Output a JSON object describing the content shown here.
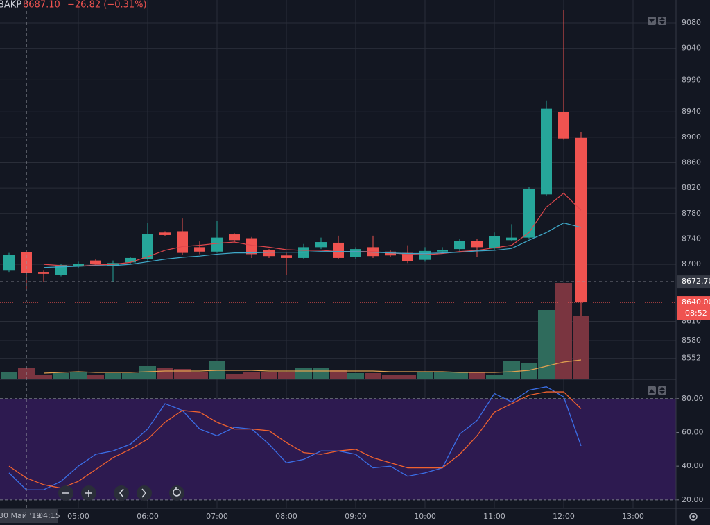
{
  "chart_data": [
    {
      "type": "candlestick",
      "title": "BAKP",
      "price": "8687.10",
      "change": "−26.82 (−0.31%)",
      "up_color": "#26a69a",
      "down_color": "#ef5350",
      "open": [
        8690,
        8719,
        8688,
        8683,
        8697,
        8706,
        8698,
        8703,
        8708,
        8750,
        8752,
        8727,
        8720,
        8747,
        8741,
        8722,
        8714,
        8710,
        8727,
        8734,
        8712,
        8727,
        8720,
        8718,
        8707,
        8720,
        8724,
        8737,
        8725,
        8738,
        8742,
        8810,
        8940,
        8899
      ],
      "high": [
        8718,
        8722,
        8690,
        8701,
        8704,
        8708,
        8706,
        8712,
        8765,
        8752,
        8772,
        8736,
        8768,
        8749,
        8743,
        8724,
        8718,
        8732,
        8742,
        8745,
        8727,
        8745,
        8722,
        8730,
        8727,
        8727,
        8740,
        8740,
        8750,
        8763,
        8822,
        8958,
        9100,
        8908
      ],
      "low": [
        8688,
        8660,
        8672,
        8681,
        8694,
        8697,
        8673,
        8700,
        8706,
        8744,
        8715,
        8716,
        8718,
        8735,
        8710,
        8710,
        8683,
        8708,
        8724,
        8708,
        8708,
        8710,
        8712,
        8702,
        8704,
        8717,
        8720,
        8712,
        8722,
        8736,
        8740,
        8808,
        8896,
        8588
      ],
      "close": [
        8715,
        8687,
        8685,
        8699,
        8701,
        8700,
        8702,
        8710,
        8748,
        8746,
        8718,
        8720,
        8742,
        8738,
        8716,
        8713,
        8710,
        8727,
        8735,
        8710,
        8724,
        8713,
        8714,
        8705,
        8721,
        8723,
        8737,
        8727,
        8744,
        8742,
        8818,
        8945,
        8898,
        8640
      ],
      "lines": [
        {
          "color": "#e0474c",
          "values": [
            null,
            null,
            8700,
            8698,
            8697,
            8699,
            8700,
            8703,
            8712,
            8722,
            8728,
            8730,
            8733,
            8735,
            8730,
            8727,
            8723,
            8722,
            8722,
            8720,
            8720,
            8720,
            8718,
            8716,
            8715,
            8717,
            8720,
            8722,
            8726,
            8730,
            8750,
            8790,
            8812,
            8785
          ]
        },
        {
          "color": "#3fa9c9",
          "values": [
            null,
            null,
            8695,
            8696,
            8697,
            8698,
            8698,
            8700,
            8704,
            8708,
            8711,
            8713,
            8716,
            8718,
            8718,
            8719,
            8719,
            8719,
            8720,
            8720,
            8720,
            8719,
            8718,
            8717,
            8717,
            8718,
            8719,
            8721,
            8722,
            8725,
            8738,
            8750,
            8765,
            8758
          ]
        }
      ],
      "ylim": [
        8520,
        9116
      ],
      "yticks": [
        9080,
        9040,
        8990,
        8940,
        8900,
        8860,
        8820,
        8780,
        8740,
        8700,
        8610,
        8580,
        8552
      ],
      "xticks": [
        {
          "value": 4,
          "label": "05:00"
        },
        {
          "value": 8,
          "label": "06:00"
        },
        {
          "value": 12,
          "label": "07:00"
        },
        {
          "value": 16,
          "label": "08:00"
        },
        {
          "value": 20,
          "label": "09:00"
        },
        {
          "value": 24,
          "label": "10:00"
        },
        {
          "value": 28,
          "label": "11:00"
        },
        {
          "value": 32,
          "label": "12:00"
        },
        {
          "value": 36,
          "label": "13:00"
        }
      ],
      "crosshair": {
        "x": 1,
        "date": "30 Май '19",
        "time": "04:15",
        "price": {
          "value": 8672.7,
          "label": "8672.70"
        }
      },
      "last_price": {
        "value": 8640,
        "label": "8640.00",
        "countdown": "08:52"
      },
      "grid": true
    },
    {
      "type": "volume",
      "up_color": "#2f6b5c",
      "down_color": "#7a3540",
      "values": [
        10,
        16,
        6,
        8,
        10,
        6,
        8,
        8,
        18,
        16,
        14,
        10,
        25,
        7,
        10,
        9,
        10,
        15,
        15,
        12,
        8,
        8,
        6,
        6,
        10,
        10,
        9,
        9,
        6,
        25,
        22,
        99,
        138,
        90
      ],
      "ma": {
        "color": "#e0a050",
        "values": [
          null,
          null,
          8,
          9,
          10,
          9,
          9,
          9,
          10,
          11,
          11,
          11,
          12,
          12,
          12,
          11,
          11,
          11,
          11,
          11,
          11,
          11,
          10,
          10,
          10,
          10,
          9,
          9,
          9,
          10,
          12,
          18,
          24,
          27
        ]
      },
      "ylim": [
        0,
        140
      ]
    },
    {
      "type": "line",
      "series": [
        {
          "color": "#3b6fe8",
          "values": [
            36,
            26,
            26,
            31,
            40,
            47,
            49,
            53,
            62,
            77,
            73,
            62,
            58,
            63,
            62,
            53,
            42,
            44,
            49,
            49,
            47,
            39,
            40,
            34,
            36,
            39,
            59,
            67,
            83,
            78,
            85,
            87,
            81,
            52
          ]
        },
        {
          "color": "#f0622f",
          "values": [
            40,
            33,
            29,
            27,
            31,
            38,
            45,
            50,
            56,
            66,
            73,
            72,
            66,
            62,
            62,
            61,
            54,
            48,
            47,
            49,
            50,
            45,
            42,
            39,
            39,
            39,
            47,
            58,
            72,
            77,
            82,
            84,
            84,
            74
          ]
        }
      ],
      "band": [
        20,
        80
      ],
      "band_color": "#2d1a50",
      "ylim": [
        15,
        91
      ],
      "yticks": [
        {
          "value": 80,
          "label": "80.00"
        },
        {
          "value": 60,
          "label": "60.00"
        },
        {
          "value": 40,
          "label": "40.00"
        },
        {
          "value": 20,
          "label": "20.00"
        }
      ]
    }
  ]
}
